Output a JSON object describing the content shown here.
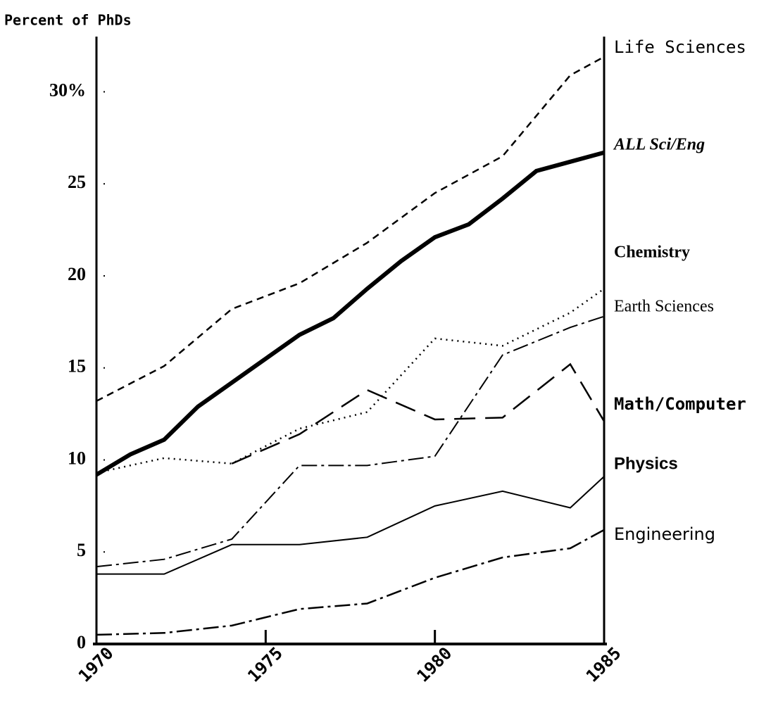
{
  "chart_data": {
    "type": "line",
    "title": "Percent of PhDs",
    "xlim": [
      1970,
      1985
    ],
    "xticks": [
      1970,
      1975,
      1980,
      1985
    ],
    "ylim": [
      0,
      33
    ],
    "yticks": [
      0,
      5,
      10,
      15,
      20,
      25,
      {
        "value": 30,
        "label": "30%"
      }
    ],
    "series": [
      {
        "name": "Life Sciences",
        "color": "#000",
        "style": "dashed",
        "width": 2.5,
        "x": [
          1970,
          1972,
          1974,
          1976,
          1978,
          1980,
          1982,
          1984,
          1985
        ],
        "values": [
          13.2,
          15.1,
          18.2,
          19.6,
          21.8,
          24.5,
          26.5,
          30.9,
          31.9
        ]
      },
      {
        "name": "ALL Sci/Eng",
        "color": "#000",
        "style": "solid",
        "width": 6,
        "x": [
          1970,
          1971,
          1972,
          1973,
          1974,
          1975,
          1976,
          1977,
          1978,
          1979,
          1980,
          1981,
          1982,
          1983,
          1984,
          1985
        ],
        "values": [
          9.2,
          10.3,
          11.1,
          12.9,
          14.2,
          15.5,
          16.8,
          17.7,
          19.3,
          20.8,
          22.1,
          22.8,
          24.2,
          25.7,
          26.2,
          26.7
        ]
      },
      {
        "name": "Chemistry",
        "color": "#000",
        "style": "dotted",
        "width": 2.5,
        "x": [
          1970,
          1972,
          1974,
          1976,
          1978,
          1980,
          1982,
          1984,
          1985
        ],
        "values": [
          9.3,
          10.1,
          9.8,
          11.7,
          12.6,
          16.6,
          16.2,
          18.0,
          19.3
        ]
      },
      {
        "name": "Earth Sciences",
        "color": "#000",
        "style": "dashdot",
        "width": 2,
        "x": [
          1970,
          1972,
          1974,
          1976,
          1978,
          1980,
          1982,
          1984,
          1985
        ],
        "values": [
          4.2,
          4.6,
          5.7,
          9.7,
          9.7,
          10.2,
          15.7,
          17.2,
          17.8
        ]
      },
      {
        "name": "Math/Computer",
        "color": "#000",
        "style": "longdash",
        "width": 2.5,
        "x": [
          1974,
          1976,
          1978,
          1980,
          1982,
          1984,
          1985
        ],
        "values": [
          9.8,
          11.4,
          13.8,
          12.2,
          12.3,
          15.2,
          12.1
        ]
      },
      {
        "name": "Physics",
        "color": "#000",
        "style": "solid",
        "width": 2,
        "x": [
          1970,
          1972,
          1974,
          1976,
          1978,
          1980,
          1982,
          1984,
          1985
        ],
        "values": [
          3.8,
          3.8,
          5.4,
          5.4,
          5.8,
          7.5,
          8.3,
          7.4,
          9.1
        ]
      },
      {
        "name": "Engineering",
        "color": "#000",
        "style": "dashdot",
        "width": 2.5,
        "x": [
          1970,
          1972,
          1974,
          1976,
          1978,
          1980,
          1982,
          1984,
          1985
        ],
        "values": [
          0.5,
          0.6,
          1.0,
          1.9,
          2.2,
          3.6,
          4.7,
          5.2,
          6.2
        ]
      }
    ]
  }
}
